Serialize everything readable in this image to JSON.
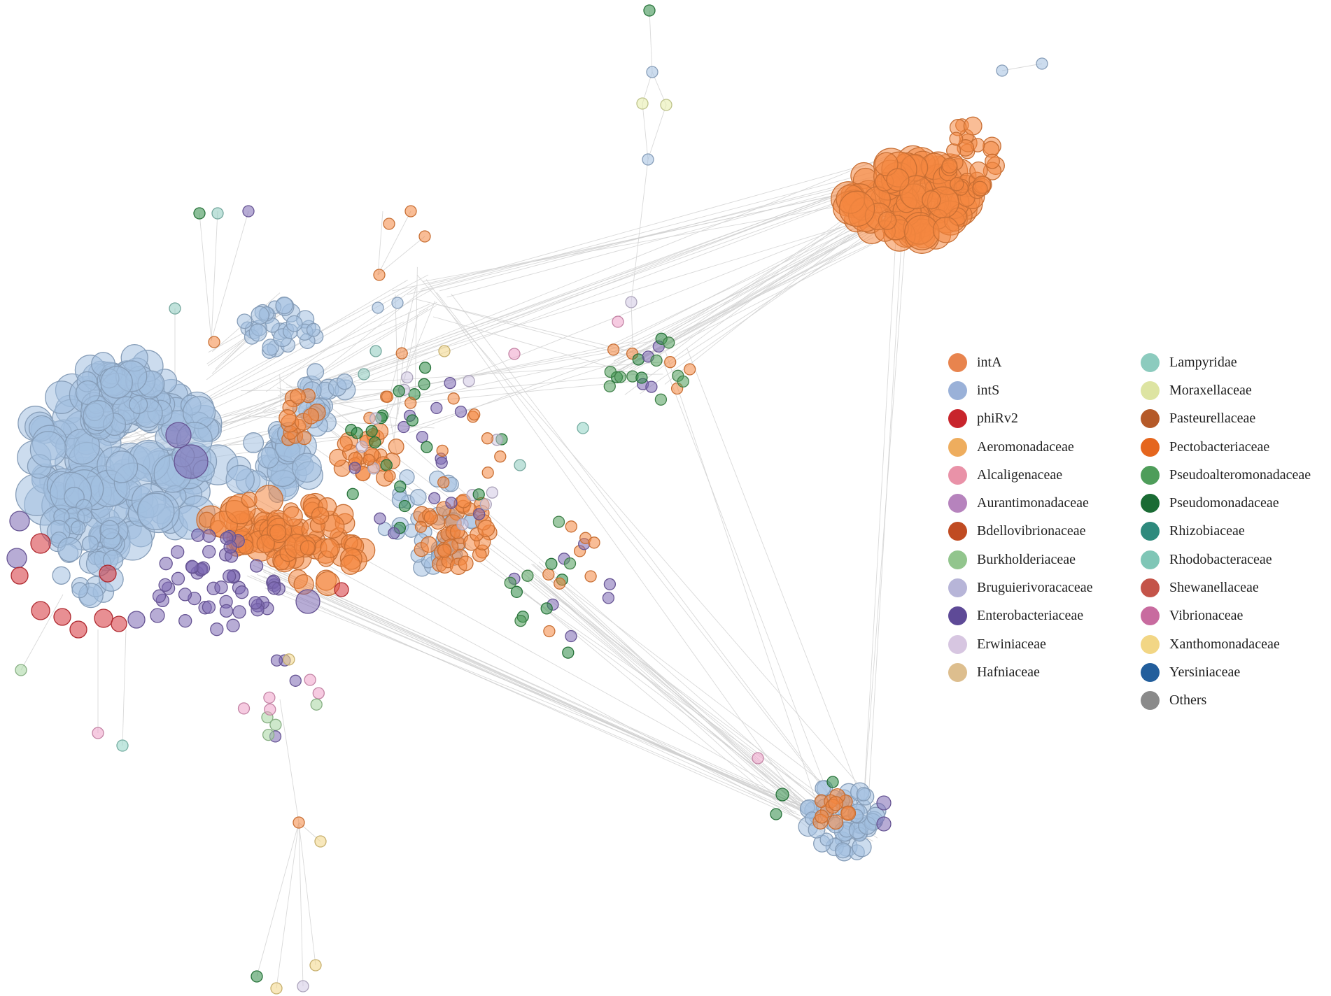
{
  "legend": {
    "column1": [
      {
        "label": "intA",
        "color": "#E8844E"
      },
      {
        "label": "intS",
        "color": "#9AB1D8"
      },
      {
        "label": "phiRv2",
        "color": "#C8252C"
      },
      {
        "label": "Aeromonadaceae",
        "color": "#EEAD5E"
      },
      {
        "label": "Alcaligenaceae",
        "color": "#E992A8"
      },
      {
        "label": "Aurantimonadaceae",
        "color": "#B683BD"
      },
      {
        "label": "Bdellovibrionaceae",
        "color": "#C04B22"
      },
      {
        "label": "Burkholderiaceae",
        "color": "#92C58D"
      },
      {
        "label": "Bruguierivoracaceae",
        "color": "#B7B5D8"
      },
      {
        "label": "Enterobacteriaceae",
        "color": "#5E4A97"
      },
      {
        "label": "Erwiniaceae",
        "color": "#D7C6E1"
      },
      {
        "label": "Hafniaceae",
        "color": "#DDBE8E"
      }
    ],
    "column2": [
      {
        "label": "Lampyridae",
        "color": "#8CCBBE"
      },
      {
        "label": "Moraxellaceae",
        "color": "#DDE4A2"
      },
      {
        "label": "Pasteurellaceae",
        "color": "#B55A29"
      },
      {
        "label": "Pectobacteriaceae",
        "color": "#E5661E"
      },
      {
        "label": "Pseudoalteromonadaceae",
        "color": "#4E9D5A"
      },
      {
        "label": "Pseudomonadaceae",
        "color": "#1A6B34"
      },
      {
        "label": "Rhizobiaceae",
        "color": "#2E8A7D"
      },
      {
        "label": "Rhodobacteraceae",
        "color": "#7FC6B6"
      },
      {
        "label": "Shewanellaceae",
        "color": "#C45449"
      },
      {
        "label": "Vibrionaceae",
        "color": "#C86B9F"
      },
      {
        "label": "Xanthomonadaceae",
        "color": "#F2D685"
      },
      {
        "label": "Yersiniaceae",
        "color": "#225E9C"
      },
      {
        "label": "Others",
        "color": "#8A8A8A"
      }
    ]
  },
  "node_colors": {
    "intA": "#F4873F",
    "intS": "#A3BFE0",
    "phiRv2": "#D6333A",
    "Enterobacteriaceae": "#7C67B3",
    "Pseudomonadaceae": "#2E8B46",
    "Pseudoalteromonadaceae": "#4E9D5A",
    "Lampyridae": "#8CCBBE",
    "Alcaligenaceae": "#EEA0C8",
    "Xanthomonadaceae": "#F2D685",
    "Moraxellaceae": "#E6EDA8",
    "Aurantimonadaceae": "#B286C6",
    "Erwiniaceae": "#D2C8E4",
    "Burkholderiaceae": "#A5D6A0",
    "Rhodobacteraceae": "#8FD3C4",
    "edge": "#CFCFCF"
  }
}
